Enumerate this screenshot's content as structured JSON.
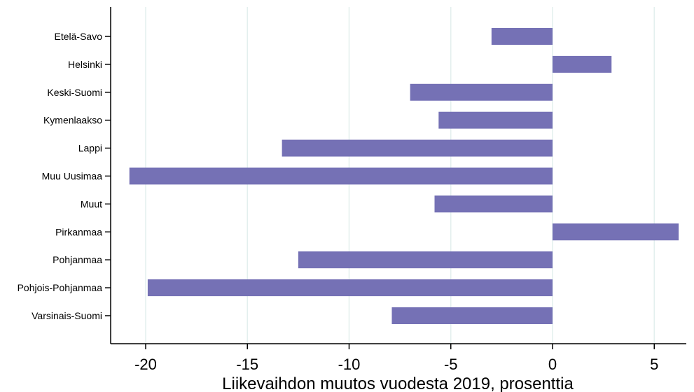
{
  "chart_data": {
    "type": "bar",
    "orientation": "horizontal",
    "title": "",
    "xlabel": "Liikevaihdon muutos vuodesta 2019, prosenttia",
    "ylabel": "",
    "xlim": [
      -22,
      6.8
    ],
    "xticks": [
      -20,
      -15,
      -10,
      -5,
      0,
      5
    ],
    "xtick_labels": [
      "-20",
      "-15",
      "-10",
      "-5",
      "0",
      "5"
    ],
    "grid": "vertical",
    "categories": [
      "Etelä-Savo",
      "Helsinki",
      "Keski-Suomi",
      "Kymenlaakso",
      "Lappi",
      "Muu Uusimaa",
      "Muut",
      "Pirkanmaa",
      "Pohjanmaa",
      "Pohjois-Pohjanmaa",
      "Varsinais-Suomi"
    ],
    "values": [
      -3.0,
      2.9,
      -7.0,
      -5.6,
      -13.3,
      -20.8,
      -5.8,
      6.2,
      -12.5,
      -19.9,
      -7.9
    ],
    "colors": {
      "bar": "#7571b5",
      "grid": "#e3efee",
      "axis": "#000000"
    }
  }
}
